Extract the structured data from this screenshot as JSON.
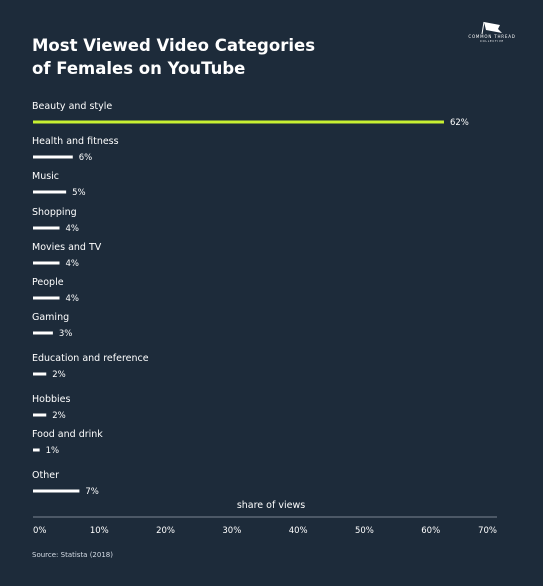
{
  "brand": {
    "name": "COMMON THREAD",
    "sub": "COLLECTIVE"
  },
  "source": "Source: Statista (2018)",
  "colors": {
    "background": "#1d2b3a",
    "highlight": "#c8f032",
    "bar": "#ffffff",
    "axis": "#9aa5b1"
  },
  "chart_data": {
    "type": "bar",
    "orientation": "horizontal",
    "title": [
      "Most Viewed Video Categories",
      "of Females on YouTube"
    ],
    "xlabel": "share of views",
    "categories": [
      "Beauty and style",
      "Health and fitness",
      "Music",
      "Shopping",
      "Movies and TV",
      "People",
      "Gaming",
      "Education and reference",
      "Hobbies",
      "Food and drink",
      "Other"
    ],
    "values": [
      62,
      6,
      5,
      4,
      4,
      4,
      3,
      2,
      2,
      1,
      7
    ],
    "value_labels": [
      "62%",
      "6%",
      "5%",
      "4%",
      "4%",
      "4%",
      "3%",
      "2%",
      "2%",
      "1%",
      "7%"
    ],
    "highlight_index": 0,
    "xlim": [
      0,
      70
    ],
    "xticks": [
      0,
      10,
      20,
      30,
      40,
      50,
      60,
      70
    ],
    "xtick_labels": [
      "0%",
      "10%",
      "20%",
      "30%",
      "40%",
      "50%",
      "60%",
      "70%"
    ],
    "grid": false,
    "legend": "none"
  }
}
